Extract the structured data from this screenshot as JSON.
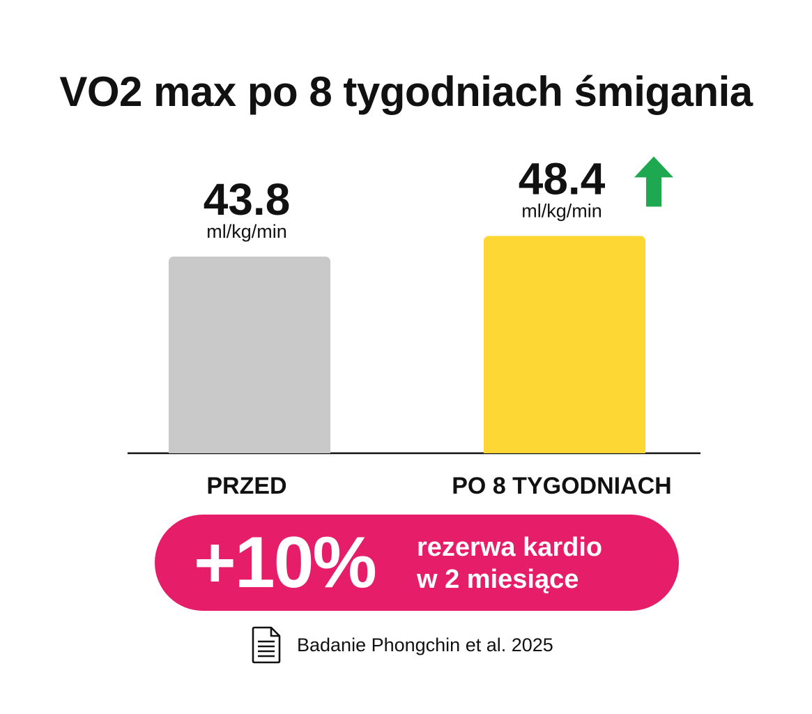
{
  "colors": {
    "background": "#ffffff",
    "bar_before": "#c9c9c9",
    "bar_after": "#fdd835",
    "arrow": "#1ea84f",
    "pill": "#e61d68",
    "text": "#111111"
  },
  "chart_data": {
    "type": "bar",
    "title": "VO2 max po 8 tygodniach śmigania",
    "categories": [
      "PRZED",
      "PO 8 TYGODNIACH"
    ],
    "values": [
      43.8,
      48.4
    ],
    "value_labels": [
      "43.8",
      "48.4"
    ],
    "unit": "ml/kg/min",
    "bar_colors": [
      "#c9c9c9",
      "#fdd835"
    ],
    "increase_marker": "arrow-up-icon",
    "grid": false,
    "legend": "none"
  },
  "callout": {
    "big_text": "+10%",
    "line1": "rezerwa kardio",
    "line2": "w 2 miesiące"
  },
  "source": {
    "icon": "document-icon",
    "text": "Badanie Phongchin et al. 2025"
  }
}
